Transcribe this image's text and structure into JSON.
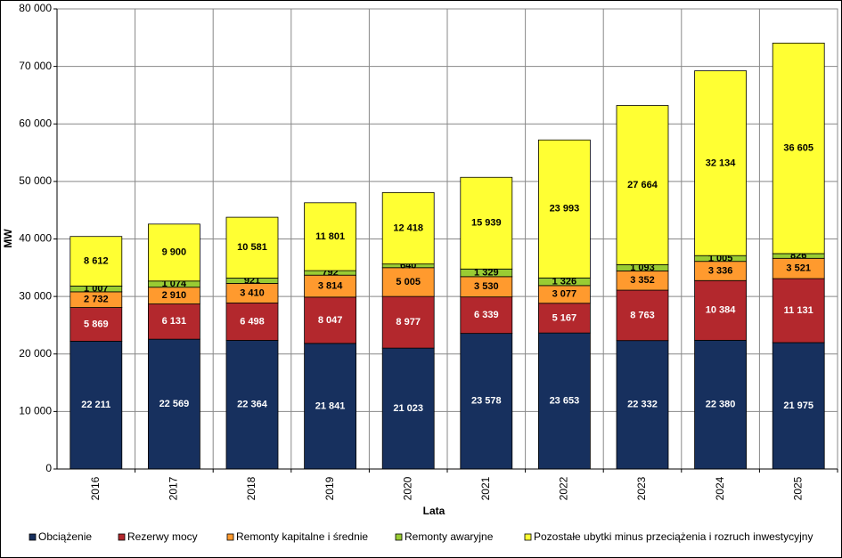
{
  "chart_data": {
    "type": "stacked-bar",
    "x_label": "Lata",
    "y_label": "MW",
    "categories": [
      "2016",
      "2017",
      "2018",
      "2019",
      "2020",
      "2021",
      "2022",
      "2023",
      "2024",
      "2025"
    ],
    "series": [
      {
        "name": "Obciążenie",
        "color": "#17305e",
        "values": [
          22211,
          22569,
          22364,
          21841,
          21023,
          23578,
          23653,
          22332,
          22380,
          21975
        ],
        "value_labels": [
          "22 211",
          "22 569",
          "22 364",
          "21 841",
          "21 023",
          "23 578",
          "23 653",
          "22 332",
          "22 380",
          "21 975"
        ]
      },
      {
        "name": "Rezerwy mocy",
        "color": "#b3282d",
        "values": [
          5869,
          6131,
          6498,
          8047,
          8977,
          6339,
          5167,
          8763,
          10384,
          11131
        ],
        "value_labels": [
          "5 869",
          "6 131",
          "6 498",
          "8 047",
          "8 977",
          "6 339",
          "5 167",
          "8 763",
          "10 384",
          "11 131"
        ]
      },
      {
        "name": "Remonty kapitalne i średnie",
        "color": "#ff9a2e",
        "values": [
          2732,
          2910,
          3410,
          3814,
          5005,
          3530,
          3077,
          3352,
          3336,
          3521
        ],
        "value_labels": [
          "2 732",
          "2 910",
          "3 410",
          "3 814",
          "5 005",
          "3 530",
          "3 077",
          "3 352",
          "3 336",
          "3 521"
        ]
      },
      {
        "name": "Remonty awaryjne",
        "color": "#99cc33",
        "values": [
          1007,
          1074,
          921,
          792,
          640,
          1329,
          1326,
          1093,
          1005,
          826
        ],
        "value_labels": [
          "1 007",
          "1 074",
          "921",
          "792",
          "640",
          "1 329",
          "1 326",
          "1 093",
          "1 005",
          "826"
        ]
      },
      {
        "name": "Pozostałe ubytki minus przeciążenia i rozruch inwestycyjny",
        "color": "#ffff33",
        "values": [
          8612,
          9900,
          10581,
          11801,
          12418,
          15939,
          23993,
          27664,
          32134,
          36605
        ],
        "value_labels": [
          "8 612",
          "9 900",
          "10 581",
          "11 801",
          "12 418",
          "15 939",
          "23 993",
          "27 664",
          "32 134",
          "36 605"
        ]
      }
    ],
    "ylim": [
      0,
      80000
    ],
    "yticks": [
      0,
      {
        "value": 10000,
        "label": "10 000"
      },
      {
        "value": 20000,
        "label": "20 000"
      },
      {
        "value": 30000,
        "label": "30 000"
      },
      {
        "value": 40000,
        "label": "40 000"
      },
      {
        "value": 50000,
        "label": "50 000"
      },
      {
        "value": 60000,
        "label": "60 000"
      },
      {
        "value": 70000,
        "label": "70 000"
      },
      {
        "value": 80000,
        "label": "80 000"
      }
    ],
    "grid": true
  }
}
